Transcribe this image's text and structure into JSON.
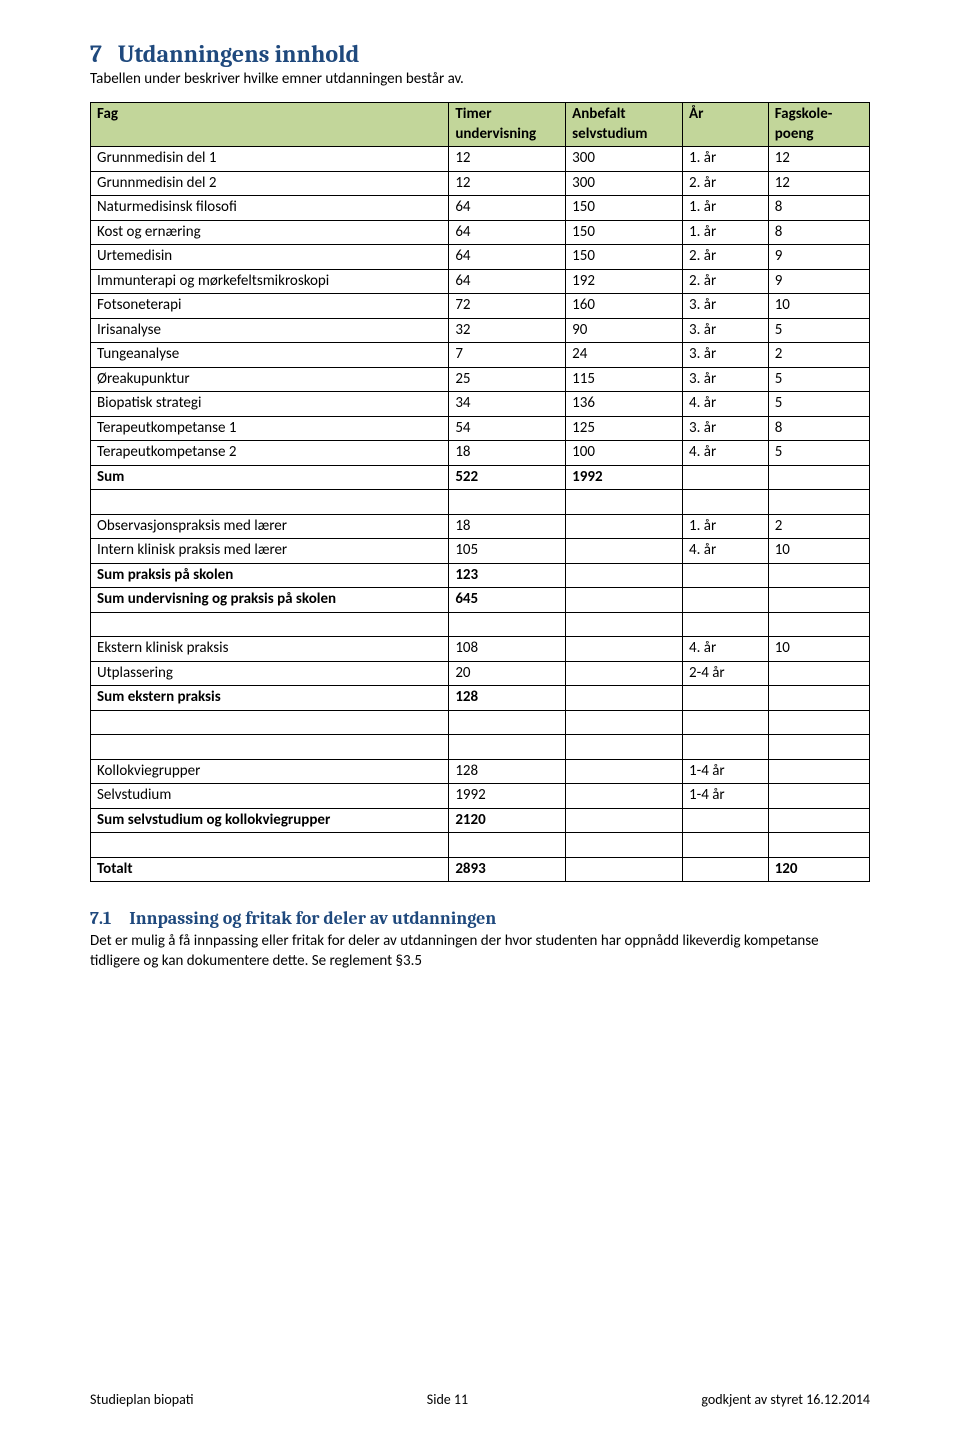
{
  "heading_num": "7",
  "heading_text": "Utdanningens innhold",
  "intro": "Tabellen under beskriver hvilke emner utdanningen består av.",
  "columns": {
    "fag": "Fag",
    "timer": "Timer undervisning",
    "anbefalt": "Anbefalt selvstudium",
    "ar": "År",
    "poeng": "Fagskole-poeng"
  },
  "rows_main": [
    {
      "fag": "Grunnmedisin del 1",
      "timer": "12",
      "anbefalt": "300",
      "ar": "1. år",
      "poeng": "12"
    },
    {
      "fag": "Grunnmedisin del 2",
      "timer": "12",
      "anbefalt": "300",
      "ar": "2. år",
      "poeng": "12"
    },
    {
      "fag": "Naturmedisinsk filosofi",
      "timer": "64",
      "anbefalt": "150",
      "ar": "1. år",
      "poeng": "8"
    },
    {
      "fag": "Kost og ernæring",
      "timer": "64",
      "anbefalt": "150",
      "ar": "1. år",
      "poeng": "8"
    },
    {
      "fag": "Urtemedisin",
      "timer": "64",
      "anbefalt": "150",
      "ar": "2. år",
      "poeng": "9"
    },
    {
      "fag": "Immunterapi og mørkefeltsmikroskopi",
      "timer": "64",
      "anbefalt": "192",
      "ar": "2. år",
      "poeng": "9"
    },
    {
      "fag": "Fotsoneterapi",
      "timer": "72",
      "anbefalt": "160",
      "ar": "3. år",
      "poeng": "10"
    },
    {
      "fag": "Irisanalyse",
      "timer": "32",
      "anbefalt": "90",
      "ar": "3. år",
      "poeng": "5"
    },
    {
      "fag": "Tungeanalyse",
      "timer": "7",
      "anbefalt": "24",
      "ar": "3. år",
      "poeng": "2"
    },
    {
      "fag": "Øreakupunktur",
      "timer": "25",
      "anbefalt": "115",
      "ar": "3. år",
      "poeng": "5"
    },
    {
      "fag": "Biopatisk strategi",
      "timer": "34",
      "anbefalt": "136",
      "ar": "4. år",
      "poeng": "5"
    },
    {
      "fag": "Terapeutkompetanse 1",
      "timer": "54",
      "anbefalt": "125",
      "ar": "3. år",
      "poeng": "8"
    },
    {
      "fag": "Terapeutkompetanse 2",
      "timer": "18",
      "anbefalt": "100",
      "ar": "4. år",
      "poeng": "5"
    }
  ],
  "sum_main": {
    "fag": "Sum",
    "timer": "522",
    "anbefalt": "1992",
    "ar": "",
    "poeng": ""
  },
  "rows_obs": [
    {
      "fag": "Observasjonspraksis med lærer",
      "timer": "18",
      "anbefalt": "",
      "ar": "1. år",
      "poeng": "2",
      "bold": false
    },
    {
      "fag": "Intern klinisk praksis med lærer",
      "timer": "105",
      "anbefalt": "",
      "ar": "4. år",
      "poeng": "10",
      "bold": false
    },
    {
      "fag": "Sum praksis på skolen",
      "timer": "123",
      "anbefalt": "",
      "ar": "",
      "poeng": "",
      "bold": true
    },
    {
      "fag": "Sum undervisning og praksis på skolen",
      "timer": "645",
      "anbefalt": "",
      "ar": "",
      "poeng": "",
      "bold": true
    }
  ],
  "rows_ekstern": [
    {
      "fag": "Ekstern klinisk praksis",
      "timer": "108",
      "anbefalt": "",
      "ar": "4. år",
      "poeng": "10",
      "bold": false
    },
    {
      "fag": "Utplassering",
      "timer": "20",
      "anbefalt": "",
      "ar": "2-4 år",
      "poeng": "",
      "bold": false
    },
    {
      "fag": "Sum ekstern praksis",
      "timer": "128",
      "anbefalt": "",
      "ar": "",
      "poeng": "",
      "bold": true
    }
  ],
  "rows_kollo": [
    {
      "fag": "Kollokviegrupper",
      "timer": "128",
      "anbefalt": "",
      "ar": "1-4 år",
      "poeng": "",
      "bold": false
    },
    {
      "fag": "Selvstudium",
      "timer": "1992",
      "anbefalt": "",
      "ar": "1-4 år",
      "poeng": "",
      "bold": false
    },
    {
      "fag": "Sum selvstudium og kollokviegrupper",
      "timer": "2120",
      "anbefalt": "",
      "ar": "",
      "poeng": "",
      "bold": true
    }
  ],
  "totalt": {
    "fag": "Totalt",
    "timer": "2893",
    "anbefalt": "",
    "ar": "",
    "poeng": "120"
  },
  "sub_num": "7.1",
  "sub_title": "Innpassing og fritak for deler av utdanningen",
  "sub_body": "Det er mulig å få innpassing eller fritak for deler av utdanningen der hvor studenten har oppnådd likeverdig kompetanse tidligere og kan dokumentere dette. Se reglement §3.5",
  "footer_left": "Studieplan biopati",
  "footer_center": "Side 11",
  "footer_right": "godkjent av styret 16.12.2014"
}
